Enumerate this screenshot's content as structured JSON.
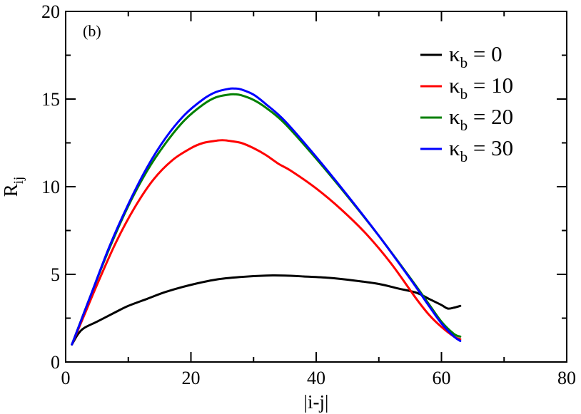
{
  "chart_data": {
    "type": "line",
    "panel_label": "(b)",
    "xlabel": "|i-j|",
    "ylabel": {
      "main": "R",
      "sub": "ij"
    },
    "xlim": [
      0,
      80
    ],
    "ylim": [
      0,
      20
    ],
    "xticks": [
      0,
      20,
      40,
      60,
      80
    ],
    "yticks": [
      0,
      5,
      10,
      15,
      20
    ],
    "xtick_labels": [
      "0",
      "20",
      "40",
      "60",
      "80"
    ],
    "ytick_labels": [
      "0",
      "5",
      "10",
      "15",
      "20"
    ],
    "legend_position": "top-right",
    "series": [
      {
        "name": "κb = 0",
        "legend": {
          "symbol": "κ",
          "sub": "b",
          "rest": " = 0"
        },
        "color": "#000000",
        "x": [
          1,
          2,
          3,
          5,
          8,
          10,
          13,
          16,
          20,
          24,
          28,
          32,
          35,
          38,
          42,
          46,
          50,
          53,
          56,
          58,
          60,
          61,
          62,
          63
        ],
        "y": [
          1.0,
          1.6,
          1.95,
          2.3,
          2.85,
          3.2,
          3.6,
          4.0,
          4.4,
          4.7,
          4.85,
          4.93,
          4.93,
          4.88,
          4.8,
          4.65,
          4.45,
          4.2,
          3.95,
          3.6,
          3.25,
          3.05,
          3.1,
          3.2
        ]
      },
      {
        "name": "κb = 10",
        "legend": {
          "symbol": "κ",
          "sub": "b",
          "rest": " = 10"
        },
        "color": "#ff0000",
        "x": [
          1,
          3,
          5,
          8,
          11,
          14,
          17,
          20,
          22,
          24,
          25,
          26,
          28,
          30,
          32,
          34,
          36,
          40,
          44,
          48,
          52,
          56,
          58,
          60,
          62,
          63
        ],
        "y": [
          1.0,
          2.7,
          4.4,
          6.8,
          8.8,
          10.4,
          11.5,
          12.2,
          12.5,
          12.62,
          12.65,
          12.62,
          12.5,
          12.2,
          11.8,
          11.3,
          10.9,
          9.9,
          8.7,
          7.3,
          5.6,
          3.6,
          2.7,
          2.0,
          1.45,
          1.3
        ]
      },
      {
        "name": "κb = 20",
        "legend": {
          "symbol": "κ",
          "sub": "b",
          "rest": " = 20"
        },
        "color": "#008000",
        "x": [
          1,
          4,
          7,
          10,
          13,
          16,
          19,
          22,
          24,
          26,
          27,
          28,
          30,
          32,
          35,
          40,
          45,
          50,
          55,
          58,
          60,
          62,
          63
        ],
        "y": [
          1.0,
          3.8,
          6.5,
          8.9,
          10.9,
          12.5,
          13.8,
          14.7,
          15.1,
          15.25,
          15.27,
          15.22,
          14.95,
          14.5,
          13.6,
          11.6,
          9.45,
          7.2,
          4.8,
          3.3,
          2.3,
          1.6,
          1.45
        ]
      },
      {
        "name": "κb = 30",
        "legend": {
          "symbol": "κ",
          "sub": "b",
          "rest": " = 30"
        },
        "color": "#0000ff",
        "x": [
          1,
          4,
          7,
          10,
          13,
          16,
          19,
          22,
          24,
          26,
          27,
          28,
          30,
          32,
          35,
          40,
          45,
          50,
          55,
          58,
          60,
          62,
          63
        ],
        "y": [
          1.0,
          3.8,
          6.6,
          9.0,
          11.1,
          12.8,
          14.1,
          15.0,
          15.4,
          15.58,
          15.6,
          15.55,
          15.25,
          14.7,
          13.75,
          11.7,
          9.5,
          7.2,
          4.75,
          3.2,
          2.2,
          1.45,
          1.2
        ]
      }
    ]
  }
}
